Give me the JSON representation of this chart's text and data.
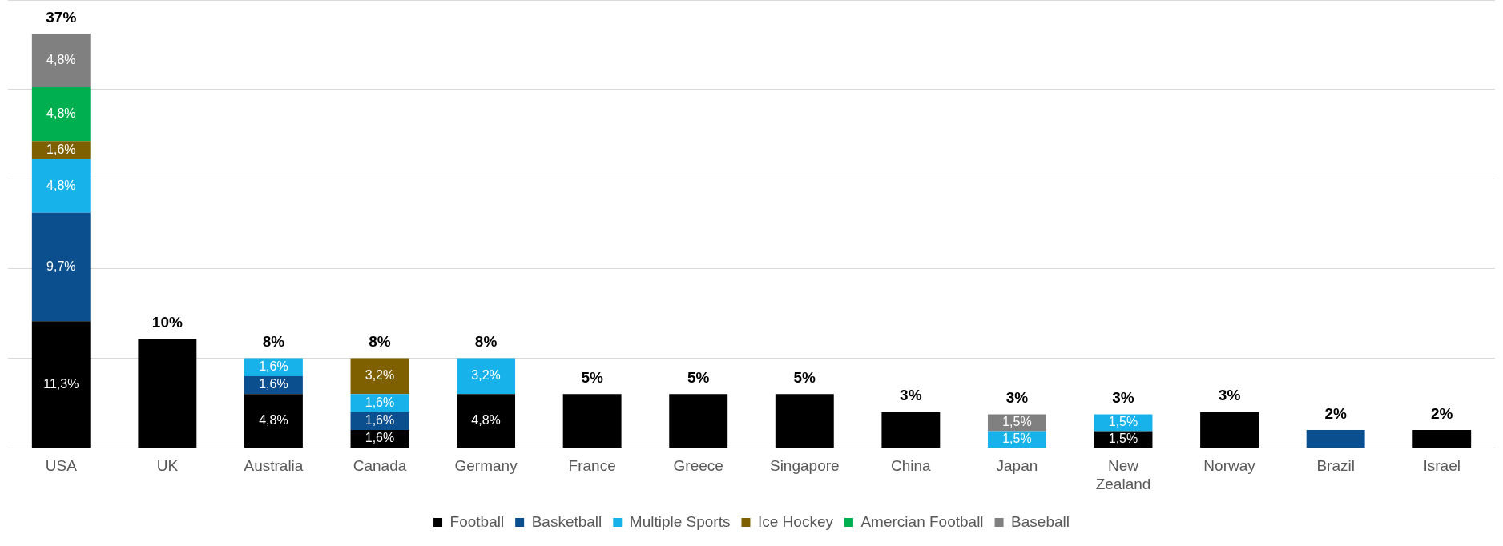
{
  "chart_data": {
    "type": "bar",
    "stacked": true,
    "categories": [
      "USA",
      "UK",
      "Australia",
      "Canada",
      "Germany",
      "France",
      "Greece",
      "Singapore",
      "China",
      "Japan",
      "New Zealand",
      "Norway",
      "Brazil",
      "Israel"
    ],
    "series": [
      {
        "name": "Football",
        "color": "#000000",
        "values": [
          11.3,
          9.7,
          4.8,
          1.6,
          4.8,
          4.8,
          4.8,
          4.8,
          3.2,
          null,
          1.5,
          3.2,
          null,
          1.6
        ],
        "value_labels": [
          "11,3%",
          null,
          "4,8%",
          "1,6%",
          "4,8%",
          null,
          null,
          null,
          null,
          null,
          "1,5%",
          null,
          null,
          null
        ]
      },
      {
        "name": "Basketball",
        "color": "#0b4f8f",
        "values": [
          9.7,
          null,
          1.6,
          1.6,
          null,
          null,
          null,
          null,
          null,
          null,
          null,
          null,
          1.6,
          null
        ],
        "value_labels": [
          "9,7%",
          null,
          "1,6%",
          "1,6%",
          null,
          null,
          null,
          null,
          null,
          null,
          null,
          null,
          null,
          null
        ]
      },
      {
        "name": "Multiple Sports",
        "color": "#17b2ea",
        "values": [
          4.8,
          null,
          1.6,
          1.6,
          3.2,
          null,
          null,
          null,
          null,
          1.5,
          1.5,
          null,
          null,
          null
        ],
        "value_labels": [
          "4,8%",
          null,
          "1,6%",
          "1,6%",
          "3,2%",
          null,
          null,
          null,
          null,
          "1,5%",
          "1,5%",
          null,
          null,
          null
        ]
      },
      {
        "name": "Ice Hockey",
        "color": "#7f6000",
        "values": [
          1.6,
          null,
          null,
          3.2,
          null,
          null,
          null,
          null,
          null,
          null,
          null,
          null,
          null,
          null
        ],
        "value_labels": [
          "1,6%",
          null,
          null,
          "3,2%",
          null,
          null,
          null,
          null,
          null,
          null,
          null,
          null,
          null,
          null
        ]
      },
      {
        "name": "Amercian Football",
        "color": "#00b050",
        "values": [
          4.8,
          null,
          null,
          null,
          null,
          null,
          null,
          null,
          null,
          null,
          null,
          null,
          null,
          null
        ],
        "value_labels": [
          "4,8%",
          null,
          null,
          null,
          null,
          null,
          null,
          null,
          null,
          null,
          null,
          null,
          null,
          null
        ]
      },
      {
        "name": "Baseball",
        "color": "#808080",
        "values": [
          4.8,
          null,
          null,
          null,
          null,
          null,
          null,
          null,
          null,
          1.5,
          null,
          null,
          null,
          null
        ],
        "value_labels": [
          "4,8%",
          null,
          null,
          null,
          null,
          null,
          null,
          null,
          null,
          "1,5%",
          null,
          null,
          null,
          null
        ]
      }
    ],
    "totals": [
      "37%",
      "10%",
      "8%",
      "8%",
      "8%",
      "5%",
      "5%",
      "5%",
      "3%",
      "3%",
      "3%",
      "3%",
      "2%",
      "2%"
    ],
    "ylim": [
      0,
      40
    ],
    "yticks": [
      {
        "value": 0,
        "label": null
      },
      {
        "value": 8,
        "label": null
      },
      {
        "value": 16,
        "label": null
      },
      {
        "value": 24,
        "label": null
      },
      {
        "value": 32,
        "label": null
      },
      {
        "value": 40,
        "label": null
      }
    ],
    "tick_labels": "x",
    "grid": "y",
    "legend": "bottom"
  }
}
